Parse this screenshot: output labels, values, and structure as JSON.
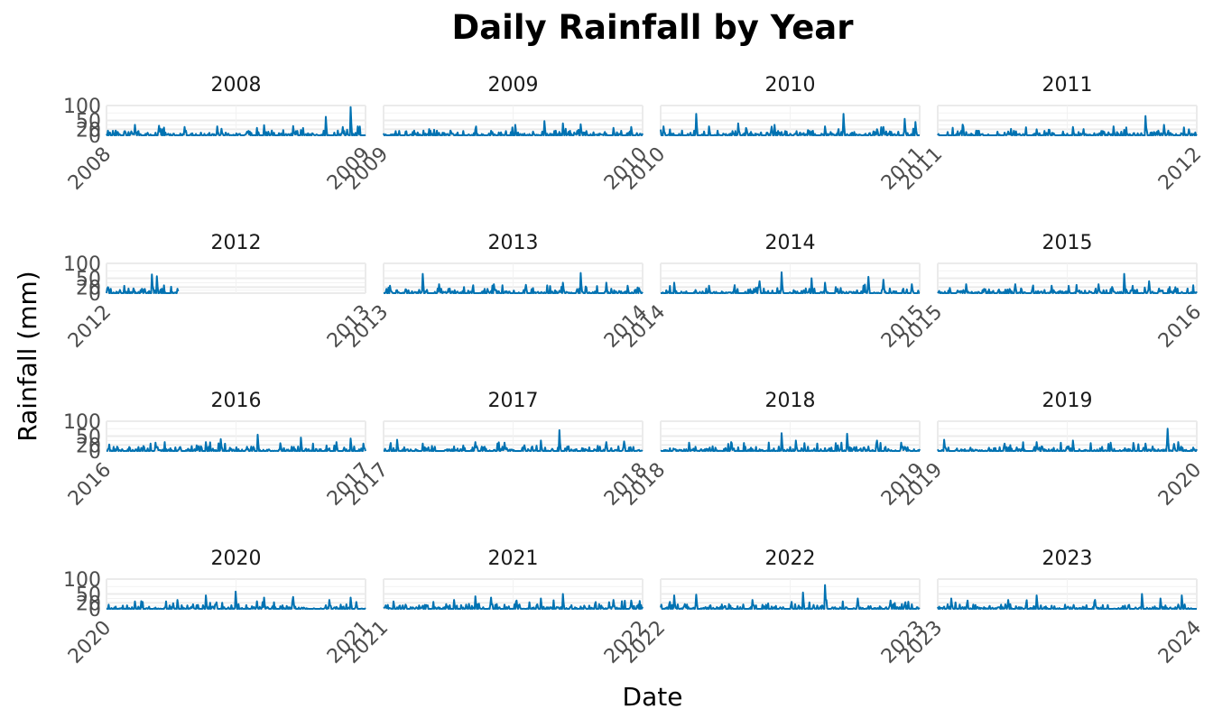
{
  "chart_data": {
    "type": "line",
    "title": "Daily Rainfall by Year",
    "xlabel": "Date",
    "ylabel": "Rainfall (mm)",
    "ylim": [
      0,
      100
    ],
    "yticks": [
      0,
      20,
      50,
      100
    ],
    "grid": true,
    "legend": "none",
    "line_color": "#0072B2",
    "facets": [
      {
        "label": "2008",
        "x_ticks": [
          "2008",
          "2009"
        ],
        "x_range": [
          "2008-01-01",
          "2009-01-01"
        ],
        "peaks": [
          {
            "date": "2008-02-10",
            "value": 35
          },
          {
            "date": "2008-03-15",
            "value": 32
          },
          {
            "date": "2008-04-20",
            "value": 28
          },
          {
            "date": "2008-06-05",
            "value": 30
          },
          {
            "date": "2008-08-10",
            "value": 34
          },
          {
            "date": "2008-09-20",
            "value": 31
          },
          {
            "date": "2008-11-05",
            "value": 62
          },
          {
            "date": "2008-12-10",
            "value": 95
          },
          {
            "date": "2008-12-20",
            "value": 30
          }
        ]
      },
      {
        "label": "2009",
        "x_ticks": [
          "2009",
          "2010"
        ],
        "x_range": [
          "2009-01-01",
          "2010-01-01"
        ],
        "peaks": [
          {
            "date": "2009-05-10",
            "value": 20
          },
          {
            "date": "2009-07-05",
            "value": 35
          },
          {
            "date": "2009-08-15",
            "value": 48
          },
          {
            "date": "2009-09-10",
            "value": 40
          },
          {
            "date": "2009-10-05",
            "value": 37
          },
          {
            "date": "2009-11-20",
            "value": 25
          },
          {
            "date": "2009-12-15",
            "value": 28
          }
        ]
      },
      {
        "label": "2010",
        "x_ticks": [
          "2010",
          "2011"
        ],
        "x_range": [
          "2010-01-01",
          "2011-01-01"
        ],
        "peaks": [
          {
            "date": "2010-01-05",
            "value": 30
          },
          {
            "date": "2010-02-20",
            "value": 72
          },
          {
            "date": "2010-03-10",
            "value": 30
          },
          {
            "date": "2010-04-20",
            "value": 40
          },
          {
            "date": "2010-06-10",
            "value": 35
          },
          {
            "date": "2010-08-20",
            "value": 30
          },
          {
            "date": "2010-09-15",
            "value": 72
          },
          {
            "date": "2010-11-10",
            "value": 28
          },
          {
            "date": "2010-12-10",
            "value": 55
          },
          {
            "date": "2010-12-25",
            "value": 45
          }
        ]
      },
      {
        "label": "2011",
        "x_ticks": [
          "2011",
          "2012"
        ],
        "x_range": [
          "2011-01-01",
          "2012-01-01"
        ],
        "peaks": [
          {
            "date": "2011-02-05",
            "value": 36
          },
          {
            "date": "2011-05-20",
            "value": 20
          },
          {
            "date": "2011-07-10",
            "value": 28
          },
          {
            "date": "2011-09-05",
            "value": 30
          },
          {
            "date": "2011-10-20",
            "value": 65
          },
          {
            "date": "2011-11-15",
            "value": 35
          },
          {
            "date": "2011-12-20",
            "value": 20
          }
        ]
      },
      {
        "label": "2012",
        "x_ticks": [
          "2012",
          "2013"
        ],
        "x_range": [
          "2012-01-01",
          "2013-01-01"
        ],
        "peaks": [
          {
            "date": "2012-01-03",
            "value": 20
          },
          {
            "date": "2012-02-20",
            "value": 15
          },
          {
            "date": "2012-03-05",
            "value": 63
          },
          {
            "date": "2012-03-12",
            "value": 57
          },
          {
            "date": "2012-04-10",
            "value": 15
          },
          {
            "date": "2012-04-25",
            "value": 10
          }
        ]
      },
      {
        "label": "2013",
        "x_ticks": [
          "2013",
          "2014"
        ],
        "x_range": [
          "2013-01-01",
          "2014-01-01"
        ],
        "peaks": [
          {
            "date": "2013-01-10",
            "value": 25
          },
          {
            "date": "2013-02-25",
            "value": 65
          },
          {
            "date": "2013-03-20",
            "value": 30
          },
          {
            "date": "2013-06-05",
            "value": 30
          },
          {
            "date": "2013-07-20",
            "value": 28
          },
          {
            "date": "2013-09-10",
            "value": 35
          },
          {
            "date": "2013-10-05",
            "value": 68
          },
          {
            "date": "2013-11-10",
            "value": 35
          },
          {
            "date": "2013-12-10",
            "value": 25
          }
        ]
      },
      {
        "label": "2014",
        "x_ticks": [
          "2014",
          "2015"
        ],
        "x_range": [
          "2014-01-01",
          "2015-01-01"
        ],
        "peaks": [
          {
            "date": "2014-01-20",
            "value": 35
          },
          {
            "date": "2014-03-10",
            "value": 25
          },
          {
            "date": "2014-05-20",
            "value": 40
          },
          {
            "date": "2014-06-20",
            "value": 70
          },
          {
            "date": "2014-08-01",
            "value": 50
          },
          {
            "date": "2014-08-20",
            "value": 35
          },
          {
            "date": "2014-10-20",
            "value": 55
          },
          {
            "date": "2014-11-10",
            "value": 45
          },
          {
            "date": "2014-12-20",
            "value": 30
          }
        ]
      },
      {
        "label": "2015",
        "x_ticks": [
          "2015",
          "2016"
        ],
        "x_range": [
          "2015-01-01",
          "2016-01-01"
        ],
        "peaks": [
          {
            "date": "2015-02-10",
            "value": 30
          },
          {
            "date": "2015-04-20",
            "value": 30
          },
          {
            "date": "2015-06-10",
            "value": 25
          },
          {
            "date": "2015-08-15",
            "value": 30
          },
          {
            "date": "2015-09-20",
            "value": 65
          },
          {
            "date": "2015-10-25",
            "value": 40
          },
          {
            "date": "2015-12-01",
            "value": 20
          }
        ]
      },
      {
        "label": "2016",
        "x_ticks": [
          "2016",
          "2017"
        ],
        "x_range": [
          "2016-01-01",
          "2017-01-01"
        ],
        "peaks": [
          {
            "date": "2016-03-10",
            "value": 28
          },
          {
            "date": "2016-05-20",
            "value": 30
          },
          {
            "date": "2016-06-10",
            "value": 40
          },
          {
            "date": "2016-08-01",
            "value": 55
          },
          {
            "date": "2016-10-01",
            "value": 45
          },
          {
            "date": "2016-11-20",
            "value": 30
          },
          {
            "date": "2016-12-10",
            "value": 42
          },
          {
            "date": "2016-12-28",
            "value": 25
          }
        ]
      },
      {
        "label": "2017",
        "x_ticks": [
          "2017",
          "2018"
        ],
        "x_range": [
          "2017-01-01",
          "2018-01-01"
        ],
        "peaks": [
          {
            "date": "2017-01-20",
            "value": 38
          },
          {
            "date": "2017-05-10",
            "value": 30
          },
          {
            "date": "2017-06-20",
            "value": 28
          },
          {
            "date": "2017-08-10",
            "value": 35
          },
          {
            "date": "2017-09-05",
            "value": 70
          },
          {
            "date": "2017-11-10",
            "value": 30
          },
          {
            "date": "2017-12-05",
            "value": 32
          }
        ]
      },
      {
        "label": "2018",
        "x_ticks": [
          "2018",
          "2019"
        ],
        "x_range": [
          "2018-01-01",
          "2019-01-01"
        ],
        "peaks": [
          {
            "date": "2018-02-10",
            "value": 28
          },
          {
            "date": "2018-04-10",
            "value": 30
          },
          {
            "date": "2018-06-20",
            "value": 60
          },
          {
            "date": "2018-07-10",
            "value": 35
          },
          {
            "date": "2018-09-20",
            "value": 58
          },
          {
            "date": "2018-11-01",
            "value": 35
          },
          {
            "date": "2018-12-05",
            "value": 28
          }
        ]
      },
      {
        "label": "2019",
        "x_ticks": [
          "2019",
          "2020"
        ],
        "x_range": [
          "2019-01-01",
          "2020-01-01"
        ],
        "peaks": [
          {
            "date": "2019-01-10",
            "value": 38
          },
          {
            "date": "2019-04-05",
            "value": 25
          },
          {
            "date": "2019-05-20",
            "value": 30
          },
          {
            "date": "2019-07-10",
            "value": 35
          },
          {
            "date": "2019-09-01",
            "value": 28
          },
          {
            "date": "2019-10-20",
            "value": 25
          },
          {
            "date": "2019-11-20",
            "value": 75
          },
          {
            "date": "2019-12-05",
            "value": 30
          }
        ]
      },
      {
        "label": "2020",
        "x_ticks": [
          "2020",
          "2021"
        ],
        "x_range": [
          "2020-01-01",
          "2021-01-01"
        ],
        "peaks": [
          {
            "date": "2020-02-10",
            "value": 25
          },
          {
            "date": "2020-04-10",
            "value": 30
          },
          {
            "date": "2020-05-20",
            "value": 45
          },
          {
            "date": "2020-07-01",
            "value": 58
          },
          {
            "date": "2020-08-10",
            "value": 38
          },
          {
            "date": "2020-09-20",
            "value": 40
          },
          {
            "date": "2020-11-10",
            "value": 30
          },
          {
            "date": "2020-12-10",
            "value": 38
          }
        ]
      },
      {
        "label": "2021",
        "x_ticks": [
          "2021",
          "2022"
        ],
        "x_range": [
          "2021-01-01",
          "2022-01-01"
        ],
        "peaks": [
          {
            "date": "2021-01-15",
            "value": 25
          },
          {
            "date": "2021-04-10",
            "value": 30
          },
          {
            "date": "2021-05-10",
            "value": 42
          },
          {
            "date": "2021-06-01",
            "value": 38
          },
          {
            "date": "2021-08-10",
            "value": 35
          },
          {
            "date": "2021-09-10",
            "value": 50
          },
          {
            "date": "2021-11-20",
            "value": 30
          },
          {
            "date": "2021-12-15",
            "value": 28
          }
        ]
      },
      {
        "label": "2022",
        "x_ticks": [
          "2022",
          "2023"
        ],
        "x_range": [
          "2022-01-01",
          "2023-01-01"
        ],
        "peaks": [
          {
            "date": "2022-01-20",
            "value": 45
          },
          {
            "date": "2022-02-20",
            "value": 48
          },
          {
            "date": "2022-05-10",
            "value": 30
          },
          {
            "date": "2022-07-20",
            "value": 55
          },
          {
            "date": "2022-08-20",
            "value": 80
          },
          {
            "date": "2022-10-05",
            "value": 35
          },
          {
            "date": "2022-11-20",
            "value": 28
          }
        ]
      },
      {
        "label": "2023",
        "x_ticks": [
          "2023",
          "2024"
        ],
        "x_range": [
          "2023-01-01",
          "2024-01-01"
        ],
        "peaks": [
          {
            "date": "2023-01-20",
            "value": 35
          },
          {
            "date": "2023-04-10",
            "value": 30
          },
          {
            "date": "2023-05-20",
            "value": 45
          },
          {
            "date": "2023-08-10",
            "value": 30
          },
          {
            "date": "2023-10-15",
            "value": 50
          },
          {
            "date": "2023-11-10",
            "value": 35
          },
          {
            "date": "2023-12-10",
            "value": 45
          }
        ]
      }
    ]
  }
}
